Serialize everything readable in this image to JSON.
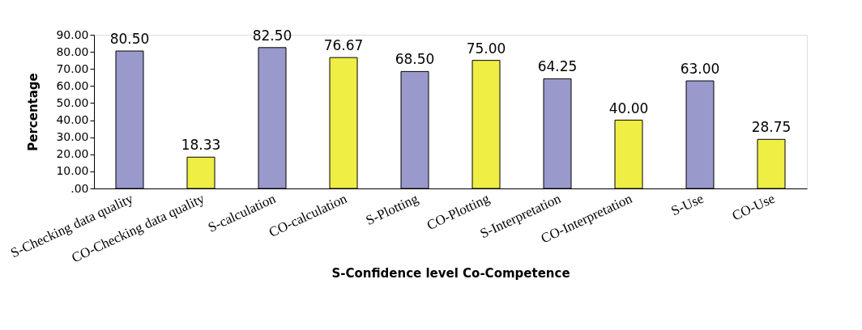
{
  "chart_data": {
    "type": "bar",
    "xlabel": "S-Confidence level   Co-Competence",
    "ylabel": "Percentage",
    "categories": [
      "S-Checking data quality",
      "CO-Checking data quality",
      "S-calculation",
      "CO-calculation",
      "S-Plotting",
      "CO-Plotting",
      "S-Interpretation",
      "CO-Interpretation",
      "S-Use",
      "CO-Use"
    ],
    "values": [
      80.5,
      18.33,
      82.5,
      76.67,
      68.5,
      75.0,
      64.25,
      40.0,
      63.0,
      28.75
    ],
    "value_labels": [
      "80.50",
      "18.33",
      "82.50",
      "76.67",
      "68.50",
      "75.00",
      "64.25",
      "40.00",
      "63.00",
      "28.75"
    ],
    "colors": [
      "#9999cc",
      "#eeee44",
      "#9999cc",
      "#eeee44",
      "#9999cc",
      "#eeee44",
      "#9999cc",
      "#eeee44",
      "#9999cc",
      "#eeee44"
    ],
    "ylim": [
      0,
      90
    ],
    "yticks": [
      {
        "value": 0,
        "label": ".00"
      },
      {
        "value": 10,
        "label": "10.00"
      },
      {
        "value": 20,
        "label": "20.00"
      },
      {
        "value": 30,
        "label": "30.00"
      },
      {
        "value": 40,
        "label": "40.00"
      },
      {
        "value": 50,
        "label": "50.00"
      },
      {
        "value": 60,
        "label": "60.00"
      },
      {
        "value": 70,
        "label": "70.00"
      },
      {
        "value": 80,
        "label": "80.00"
      },
      {
        "value": 90,
        "label": "90.00"
      }
    ],
    "grid": false
  }
}
